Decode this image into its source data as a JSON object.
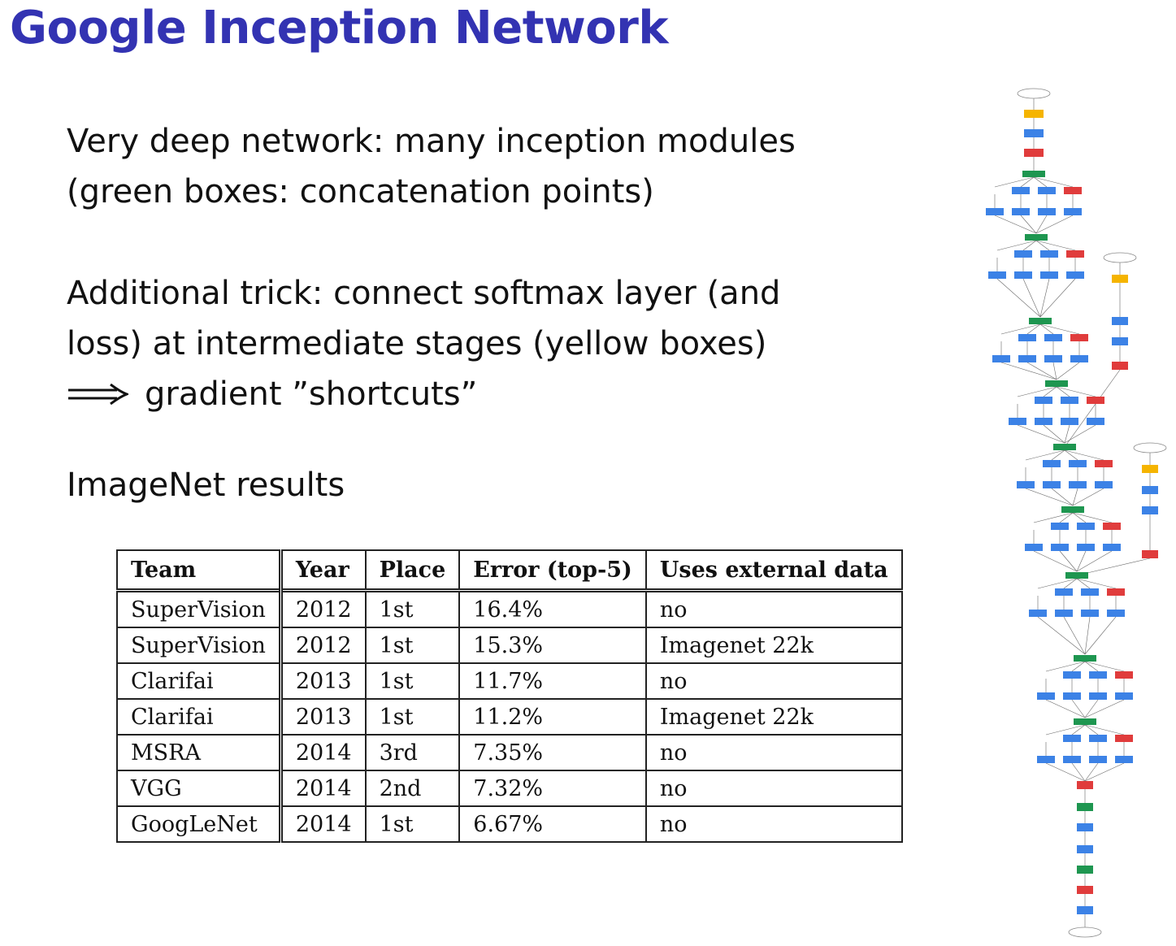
{
  "slide": {
    "title": "Google Inception Network",
    "paragraph1_line1": "Very deep network: many inception modules",
    "paragraph1_line2": "(green boxes: concatenation points)",
    "paragraph2_line1": "Additional trick: connect softmax layer (and",
    "paragraph2_line2": "loss) at intermediate stages (yellow boxes)",
    "paragraph2_line3": "gradient ”shortcuts”",
    "paragraph3": "ImageNet results"
  },
  "table": {
    "headers": [
      "Team",
      "Year",
      "Place",
      "Error (top-5)",
      "Uses external data"
    ],
    "rows": [
      [
        "SuperVision",
        "2012",
        "1st",
        "16.4%",
        "no"
      ],
      [
        "SuperVision",
        "2012",
        "1st",
        "15.3%",
        "Imagenet 22k"
      ],
      [
        "Clarifai",
        "2013",
        "1st",
        "11.7%",
        "no"
      ],
      [
        "Clarifai",
        "2013",
        "1st",
        "11.2%",
        "Imagenet 22k"
      ],
      [
        "MSRA",
        "2014",
        "3rd",
        "7.35%",
        "no"
      ],
      [
        "VGG",
        "2014",
        "2nd",
        "7.32%",
        "no"
      ],
      [
        "GoogLeNet",
        "2014",
        "1st",
        "6.67%",
        "no"
      ]
    ]
  },
  "figure": {
    "colors": {
      "conv": "#3c82e6",
      "pool": "#e03c3c",
      "concat": "#1e9650",
      "softmax": "#f5b400",
      "fc": "#3c82e6",
      "edge": "#666666"
    }
  }
}
